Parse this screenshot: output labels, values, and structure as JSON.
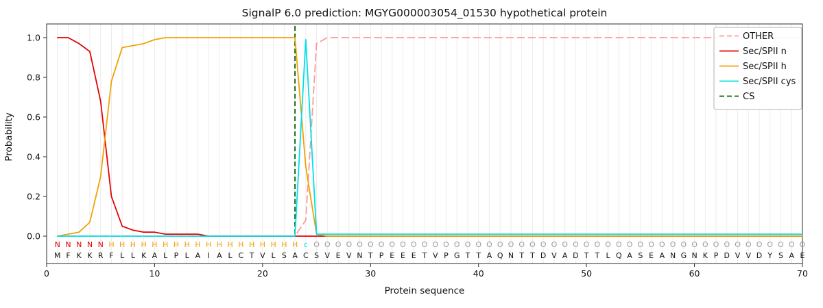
{
  "title": "SignalP 6.0 prediction: MGYG000003054_01530 hypothetical protein",
  "chart_data": {
    "type": "line",
    "title": "SignalP 6.0 prediction: MGYG000003054_01530 hypothetical protein",
    "xlabel": "Protein sequence",
    "ylabel": "Probability",
    "xlim": [
      0,
      70
    ],
    "ylim": [
      -0.14,
      1.07
    ],
    "x_ticks": [
      0,
      10,
      20,
      30,
      40,
      50,
      60,
      70
    ],
    "y_ticks": [
      0.0,
      0.2,
      0.4,
      0.6,
      0.8,
      1.0
    ],
    "grid": "vertical-line-per-residue",
    "legend_position": "upper-right",
    "sequence": "MFKKRFLLKALPLAIALCTVLSACSVEVNTPEEETVPGTTAQNTTDVADTTLQASEANGNKPDVVDYSAE",
    "region_labels": "NNNNNHHHHHHHHHHHHHHHHHHcOOOOOOOOOOOOOOOOOOOOOOOOOOOOOOOOOOOOOOOOOOOOOO",
    "region_colors": {
      "N": "#e50000",
      "H": "#f0a202",
      "c": "#00dfe8",
      "O": "#9a9a9a"
    },
    "colors": {
      "grid": "#ececec",
      "frame": "#2a2a2a",
      "text": "#111111",
      "residue_text": "#111111"
    },
    "series": [
      {
        "name": "OTHER",
        "color": "#ff9999",
        "dash": true,
        "values": [
          0,
          0,
          0,
          0,
          0,
          0,
          0,
          0,
          0,
          0,
          0,
          0,
          0,
          0,
          0,
          0,
          0,
          0,
          0,
          0,
          0,
          0,
          0,
          0.08,
          0.97,
          1,
          1,
          1,
          1,
          1,
          1,
          1,
          1,
          1,
          1,
          1,
          1,
          1,
          1,
          1,
          1,
          1,
          1,
          1,
          1,
          1,
          1,
          1,
          1,
          1,
          1,
          1,
          1,
          1,
          1,
          1,
          1,
          1,
          1,
          1,
          1,
          1,
          1,
          1,
          1,
          1,
          1,
          1,
          1,
          1
        ]
      },
      {
        "name": "Sec/SPII n",
        "color": "#e50000",
        "dash": false,
        "values": [
          1,
          1,
          0.97,
          0.93,
          0.68,
          0.2,
          0.05,
          0.03,
          0.02,
          0.02,
          0.01,
          0.01,
          0.01,
          0.01,
          0,
          0,
          0,
          0,
          0,
          0,
          0,
          0,
          0,
          0,
          0,
          0,
          0,
          0,
          0,
          0,
          0,
          0,
          0,
          0,
          0,
          0,
          0,
          0,
          0,
          0,
          0,
          0,
          0,
          0,
          0,
          0,
          0,
          0,
          0,
          0,
          0,
          0,
          0,
          0,
          0,
          0,
          0,
          0,
          0,
          0,
          0,
          0,
          0,
          0,
          0,
          0,
          0,
          0,
          0,
          0
        ]
      },
      {
        "name": "Sec/SPII h",
        "color": "#f0a202",
        "dash": false,
        "values": [
          0,
          0.01,
          0.02,
          0.07,
          0.3,
          0.78,
          0.95,
          0.96,
          0.97,
          0.99,
          1,
          1,
          1,
          1,
          1,
          1,
          1,
          1,
          1,
          1,
          1,
          1,
          1,
          0.35,
          0.01,
          0,
          0,
          0,
          0,
          0,
          0,
          0,
          0,
          0,
          0,
          0,
          0,
          0,
          0,
          0,
          0,
          0,
          0,
          0,
          0,
          0,
          0,
          0,
          0,
          0,
          0,
          0,
          0,
          0,
          0,
          0,
          0,
          0,
          0,
          0,
          0,
          0,
          0,
          0,
          0,
          0,
          0,
          0,
          0,
          0
        ]
      },
      {
        "name": "Sec/SPII cys",
        "color": "#00dfe8",
        "dash": false,
        "values": [
          0,
          0,
          0,
          0,
          0,
          0,
          0,
          0,
          0,
          0,
          0,
          0,
          0,
          0,
          0,
          0,
          0,
          0,
          0,
          0,
          0,
          0,
          0,
          0.99,
          0.01,
          0.01,
          0.01,
          0.01,
          0.01,
          0.01,
          0.01,
          0.01,
          0.01,
          0.01,
          0.01,
          0.01,
          0.01,
          0.01,
          0.01,
          0.01,
          0.01,
          0.01,
          0.01,
          0.01,
          0.01,
          0.01,
          0.01,
          0.01,
          0.01,
          0.01,
          0.01,
          0.01,
          0.01,
          0.01,
          0.01,
          0.01,
          0.01,
          0.01,
          0.01,
          0.01,
          0.01,
          0.01,
          0.01,
          0.01,
          0.01,
          0.01,
          0.01,
          0.01,
          0.01,
          0.01
        ]
      }
    ],
    "cs_line": {
      "name": "CS",
      "x": 23,
      "color": "#006400",
      "dash": true
    }
  }
}
